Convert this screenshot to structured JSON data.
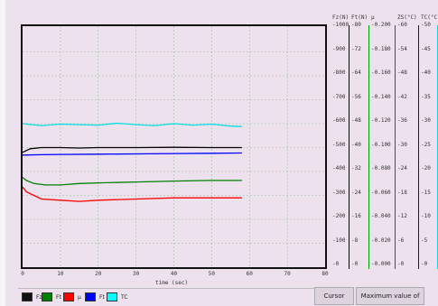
{
  "chart_data": {
    "type": "line",
    "title": "",
    "xlabel": "time (sec)",
    "xlim": [
      0,
      80
    ],
    "x_ticks": [
      "0",
      "10",
      "20",
      "30",
      "40",
      "50",
      "60",
      "70",
      "80"
    ],
    "grid": true,
    "axes": [
      {
        "name": "Fz(N)",
        "ticks": [
          "1000",
          "900",
          "800",
          "700",
          "600",
          "500",
          "400",
          "300",
          "200",
          "100",
          "0"
        ],
        "range": [
          0,
          1000
        ],
        "color": "#000000"
      },
      {
        "name": "Ft(N)",
        "ticks": [
          "80",
          "72",
          "64",
          "56",
          "48",
          "40",
          "32",
          "24",
          "16",
          "8",
          "0"
        ],
        "range": [
          0,
          80
        ],
        "color": "#00a000"
      },
      {
        "name": "μ",
        "ticks": [
          "0.200",
          "0.180",
          "0.160",
          "0.140",
          "0.120",
          "0.100",
          "0.080",
          "0.060",
          "0.040",
          "0.020",
          "0.000"
        ],
        "range": [
          0,
          0.2
        ],
        "color": "#ff0000"
      },
      {
        "name": "ZS(°C)",
        "ticks": [
          "60",
          "54",
          "48",
          "42",
          "36",
          "30",
          "24",
          "18",
          "12",
          "6",
          "0"
        ],
        "range": [
          0,
          60
        ],
        "color": "#0000ff"
      },
      {
        "name": "TC(°C)",
        "ticks": [
          "50",
          "45",
          "40",
          "35",
          "30",
          "25",
          "20",
          "15",
          "10",
          "5",
          "0"
        ],
        "range": [
          0,
          50
        ],
        "color": "#00e0e0"
      }
    ],
    "series": [
      {
        "name": "Fz",
        "color": "#000000",
        "x": [
          0,
          2,
          5,
          10,
          15,
          20,
          30,
          40,
          50,
          58
        ],
        "y": [
          480,
          495,
          500,
          500,
          498,
          500,
          500,
          501,
          500,
          500
        ]
      },
      {
        "name": "Ft",
        "color": "#008000",
        "x": [
          0,
          1,
          3,
          6,
          10,
          15,
          20,
          30,
          40,
          50,
          58
        ],
        "y": [
          30,
          29,
          28,
          27.5,
          27.5,
          28,
          28.2,
          28.5,
          28.8,
          29,
          29
        ]
      },
      {
        "name": "μ",
        "color": "#ff0000",
        "x": [
          0,
          1,
          3,
          5,
          10,
          15,
          20,
          30,
          40,
          50,
          58
        ],
        "y": [
          0.067,
          0.063,
          0.06,
          0.057,
          0.056,
          0.055,
          0.056,
          0.057,
          0.058,
          0.058,
          0.058
        ]
      },
      {
        "name": "Ft",
        "color": "#0000ff",
        "x": [
          0,
          5,
          10,
          20,
          30,
          40,
          50,
          58
        ],
        "y": [
          37.5,
          37.6,
          37.7,
          37.8,
          37.9,
          38,
          38.1,
          38.2
        ]
      },
      {
        "name": "TC",
        "color": "#00e0e0",
        "x": [
          0,
          5,
          10,
          15,
          20,
          25,
          30,
          35,
          40,
          45,
          50,
          55,
          58
        ],
        "y": [
          30,
          29.6,
          29.9,
          29.8,
          29.7,
          30.1,
          29.8,
          29.6,
          30,
          29.7,
          29.9,
          29.5,
          29.4
        ]
      }
    ]
  },
  "legend": [
    {
      "label": "Fz",
      "color": "#111111"
    },
    {
      "label": "Ft",
      "color": "#008000"
    },
    {
      "label": "μ",
      "color": "#ff0000"
    },
    {
      "label": "Ft",
      "color": "#0000ff"
    },
    {
      "label": "TC",
      "color": "#00ffff"
    }
  ],
  "buttons": {
    "cursor": "Cursor",
    "max_value": "Maximum value of"
  }
}
